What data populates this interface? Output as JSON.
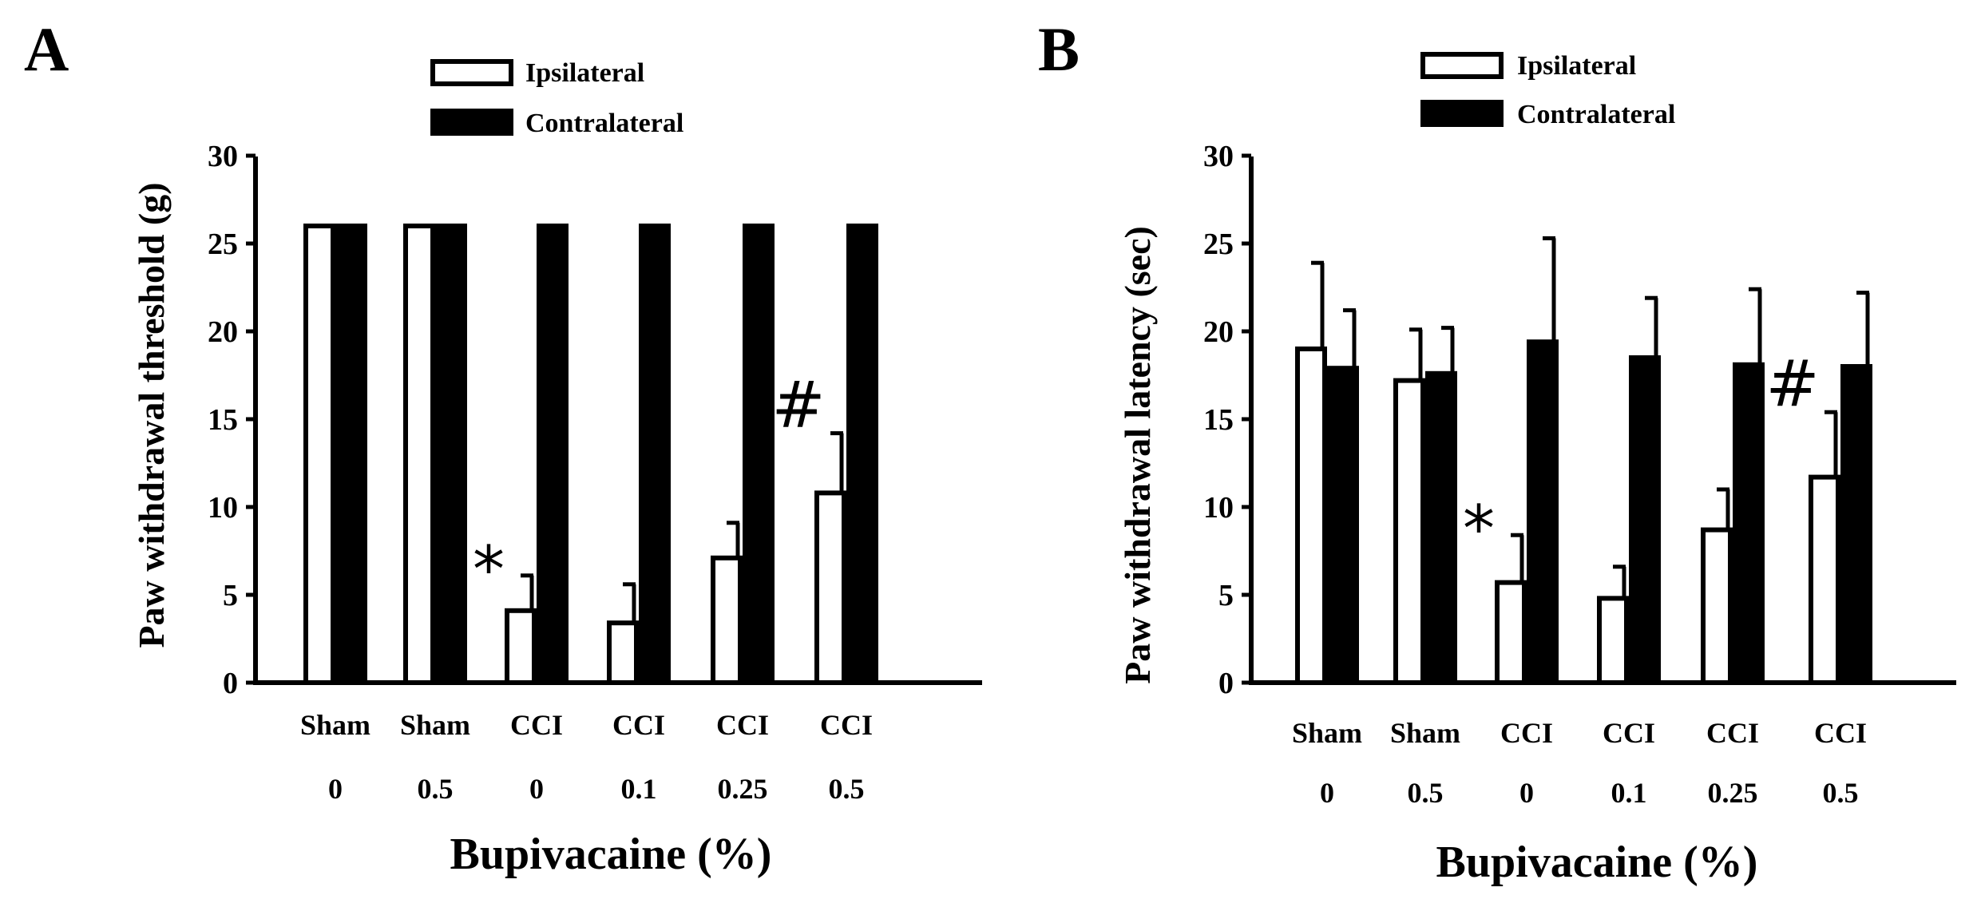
{
  "colors": {
    "ipsilateral": "#ffffff",
    "contralateral": "#000000",
    "axis": "#000000"
  },
  "chart_data": [
    {
      "type": "bar",
      "panel": "A",
      "title": "",
      "ylabel": "Paw withdrawal threshold (g)",
      "xlabel": "Bupivacaine (%)",
      "ylim": [
        0,
        30
      ],
      "yticks": [
        "0",
        "5",
        "10",
        "15",
        "20",
        "25",
        "30"
      ],
      "legend": {
        "placement": "top",
        "entries": [
          "Ipsilateral",
          "Contralateral"
        ]
      },
      "categories": [
        {
          "group": "Sham",
          "dose": "0"
        },
        {
          "group": "Sham",
          "dose": "0.5"
        },
        {
          "group": "CCI",
          "dose": "0"
        },
        {
          "group": "CCI",
          "dose": "0.1"
        },
        {
          "group": "CCI",
          "dose": "0.25"
        },
        {
          "group": "CCI",
          "dose": "0.5"
        }
      ],
      "series": [
        {
          "name": "Ipsilateral",
          "values": [
            26,
            26,
            4.1,
            3.4,
            7.1,
            10.8
          ],
          "errors": [
            0,
            0,
            2.0,
            2.2,
            2.0,
            3.4
          ]
        },
        {
          "name": "Contralateral",
          "values": [
            26,
            26,
            26,
            26,
            26,
            26
          ],
          "errors": [
            0,
            0,
            0,
            0,
            0,
            0
          ]
        }
      ],
      "annotations": [
        {
          "text": "*",
          "category": 2,
          "series": 0
        },
        {
          "text": "#",
          "category": 5,
          "series": 0
        }
      ]
    },
    {
      "type": "bar",
      "panel": "B",
      "title": "",
      "ylabel": "Paw withdrawal latency (sec)",
      "xlabel": "Bupivacaine (%)",
      "ylim": [
        0,
        30
      ],
      "yticks": [
        "0",
        "5",
        "10",
        "15",
        "20",
        "25",
        "30"
      ],
      "legend": {
        "placement": "top",
        "entries": [
          "Ipsilateral",
          "Contralateral"
        ]
      },
      "categories": [
        {
          "group": "Sham",
          "dose": "0"
        },
        {
          "group": "Sham",
          "dose": "0.5"
        },
        {
          "group": "CCI",
          "dose": "0"
        },
        {
          "group": "CCI",
          "dose": "0.1"
        },
        {
          "group": "CCI",
          "dose": "0.25"
        },
        {
          "group": "CCI",
          "dose": "0.5"
        }
      ],
      "series": [
        {
          "name": "Ipsilateral",
          "values": [
            19.0,
            17.2,
            5.7,
            4.8,
            8.7,
            11.7
          ],
          "errors": [
            4.9,
            2.9,
            2.7,
            1.8,
            2.3,
            3.7
          ]
        },
        {
          "name": "Contralateral",
          "values": [
            17.9,
            17.6,
            19.4,
            18.5,
            18.1,
            18.0
          ],
          "errors": [
            3.3,
            2.6,
            5.9,
            3.4,
            4.3,
            4.2
          ]
        }
      ],
      "annotations": [
        {
          "text": "*",
          "category": 2,
          "series": 0
        },
        {
          "text": "#",
          "category": 5,
          "series": 0
        }
      ]
    }
  ]
}
